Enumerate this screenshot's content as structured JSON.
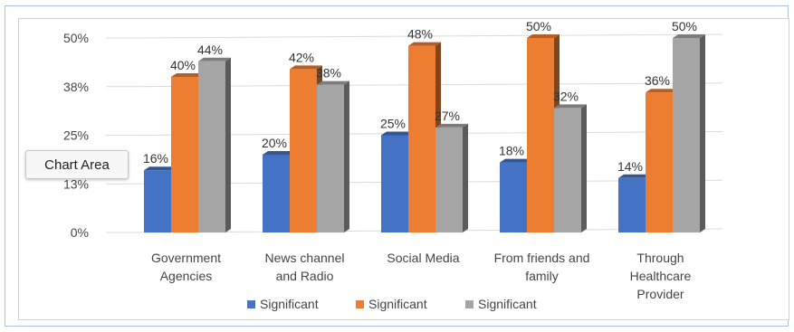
{
  "tooltip": "Chart Area",
  "chart_data": {
    "type": "bar",
    "title": "",
    "xlabel": "",
    "ylabel": "",
    "y_ticks": [
      "0%",
      "13%",
      "25%",
      "38%",
      "50%"
    ],
    "ylim": [
      0,
      50
    ],
    "categories": [
      [
        "Government",
        "Agencies"
      ],
      [
        "News channel",
        "and Radio"
      ],
      [
        "Social Media"
      ],
      [
        "From friends and",
        "family"
      ],
      [
        "Through",
        "Healthcare",
        "Provider"
      ]
    ],
    "series": [
      {
        "name": "Significant",
        "color": "#4472c4",
        "values": [
          16,
          20,
          25,
          18,
          14
        ]
      },
      {
        "name": "Significant",
        "color": "#ed7d31",
        "values": [
          40,
          42,
          48,
          50,
          36
        ]
      },
      {
        "name": "Significant",
        "color": "#a5a5a5",
        "values": [
          44,
          38,
          27,
          32,
          50
        ]
      }
    ],
    "grid": true,
    "legend": "bottom",
    "style": "3d-clustered-column"
  }
}
